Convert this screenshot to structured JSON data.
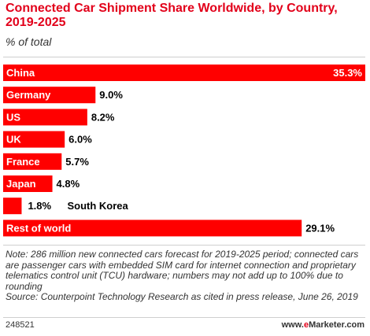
{
  "header": {
    "title": "Connected Car Shipment Share Worldwide, by Country, 2019-2025",
    "subtitle": "% of total"
  },
  "chart_data": {
    "type": "bar",
    "orientation": "horizontal",
    "title": "Connected Car Shipment Share Worldwide, by Country, 2019-2025",
    "subtitle": "% of total",
    "categories": [
      "China",
      "Germany",
      "US",
      "UK",
      "France",
      "Japan",
      "South Korea",
      "Rest of world"
    ],
    "values": [
      35.3,
      9.0,
      8.2,
      6.0,
      5.7,
      4.8,
      1.8,
      29.1
    ],
    "value_labels": [
      "35.3%",
      "9.0%",
      "8.2%",
      "6.0%",
      "5.7%",
      "4.8%",
      "1.8%",
      "29.1%"
    ],
    "xlim": [
      0,
      35.3
    ],
    "bar_color": "#ff0000",
    "grid": false,
    "legend": "none"
  },
  "note": {
    "text": "Note: 286 million new connected cars forecast for 2019-2025 period; connected cars are passenger cars with embedded SIM card for internet connection and proprietary telematics control unit (TCU) hardware; numbers may not add up to 100% due to rounding",
    "source": "Source: Counterpoint Technology Research as cited in press release, June 26, 2019"
  },
  "footer": {
    "id": "248521",
    "brand_prefix": "www.",
    "brand_e": "e",
    "brand_rest": "Marketer.com"
  },
  "colors": {
    "accent": "#e2001a",
    "bar": "#ff0000"
  }
}
